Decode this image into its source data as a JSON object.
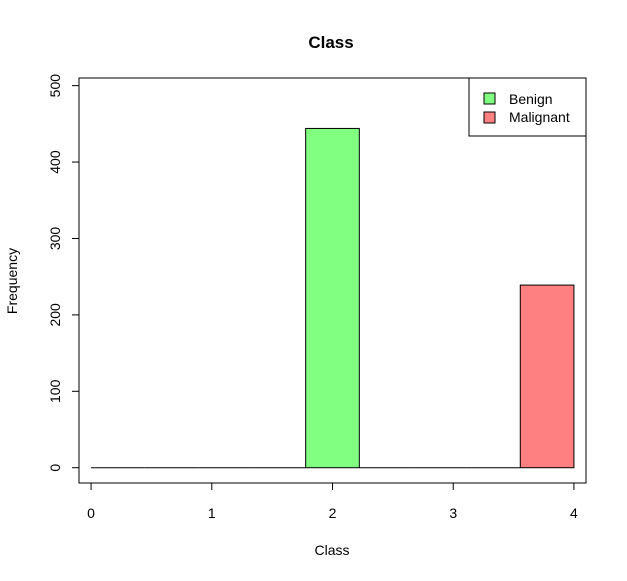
{
  "chart_data": {
    "type": "bar",
    "title": "Class",
    "xlabel": "Class",
    "ylabel": "Frequency",
    "xlim": [
      -0.1,
      4.1
    ],
    "ylim": [
      -20,
      510
    ],
    "x_ticks": [
      0,
      1,
      2,
      3,
      4
    ],
    "y_ticks": [
      0,
      100,
      200,
      300,
      400,
      500
    ],
    "bin_width": 0.4444,
    "bins": [
      {
        "x0": 0.0,
        "x1": 0.4444,
        "value": 0,
        "series": "none"
      },
      {
        "x0": 0.4444,
        "x1": 0.8889,
        "value": 0,
        "series": "none"
      },
      {
        "x0": 0.8889,
        "x1": 1.3333,
        "value": 0,
        "series": "none"
      },
      {
        "x0": 1.3333,
        "x1": 1.7778,
        "value": 0,
        "series": "none"
      },
      {
        "x0": 1.7778,
        "x1": 2.2222,
        "value": 444,
        "series": "Benign"
      },
      {
        "x0": 2.2222,
        "x1": 2.6667,
        "value": 0,
        "series": "none"
      },
      {
        "x0": 2.6667,
        "x1": 3.1111,
        "value": 0,
        "series": "none"
      },
      {
        "x0": 3.1111,
        "x1": 3.5556,
        "value": 0,
        "series": "none"
      },
      {
        "x0": 3.5556,
        "x1": 4.0,
        "value": 239,
        "series": "Malignant"
      }
    ],
    "series": [
      {
        "name": "Benign",
        "color": "#80ff80"
      },
      {
        "name": "Malignant",
        "color": "#ff8080"
      }
    ],
    "legend_position": "top-right",
    "grid": false
  }
}
